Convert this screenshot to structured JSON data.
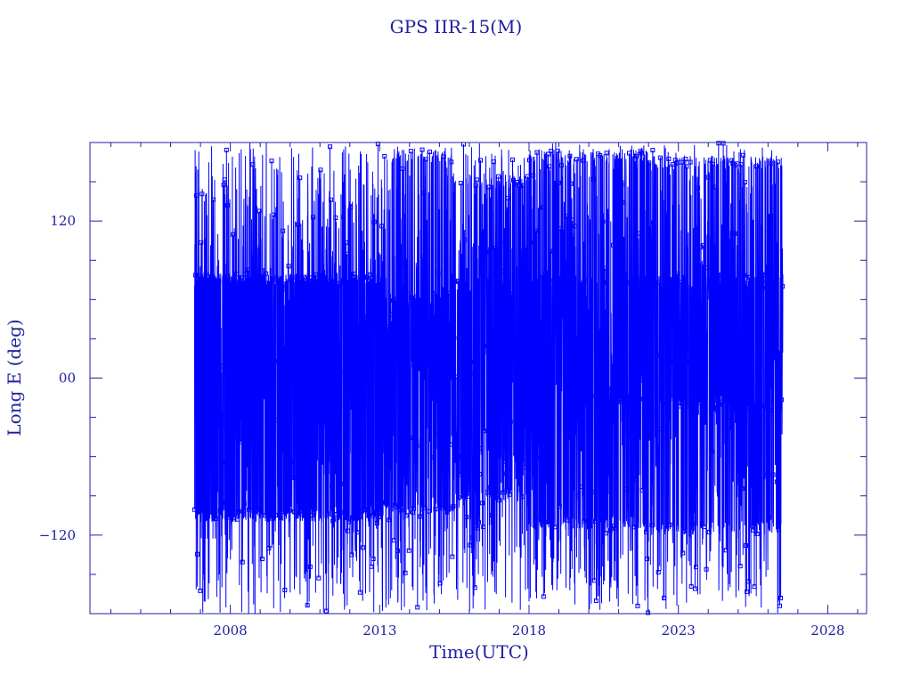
{
  "colors": {
    "axis": "#2020a0",
    "series": "#0000ff",
    "background": "#ffffff"
  },
  "chart_data": {
    "type": "scatter",
    "title": "GPS IIR-15(M)",
    "xlabel": "Time(UTC)",
    "ylabel": "Long E (deg)",
    "xlim": [
      2003.3,
      2029.3
    ],
    "ylim": [
      -180,
      180
    ],
    "x_ticks": [
      2008,
      2013,
      2018,
      2023,
      2028
    ],
    "x_tick_labels": [
      "2008",
      "2013",
      "2018",
      "2023",
      "2028"
    ],
    "y_ticks": [
      120,
      0,
      -120
    ],
    "y_tick_labels": [
      "120",
      "00",
      "−120"
    ],
    "series": [
      {
        "color": "#0000ff",
        "connected": true,
        "start": 2006.8,
        "end": 2026.5,
        "tracks": [
          {
            "from": 2006.8,
            "to": 2013.2,
            "values": [
              75,
              -105
            ]
          },
          {
            "from": 2013.2,
            "to": 2015.5,
            "values": [
              60,
              -100,
              170,
              10
            ]
          },
          {
            "from": 2015.5,
            "to": 2018.0,
            "values": [
              150,
              70,
              -90,
              100,
              -60
            ]
          },
          {
            "from": 2018.0,
            "to": 2022.0,
            "values": [
              170,
              75,
              -15,
              -110
            ]
          },
          {
            "from": 2022.0,
            "to": 2026.5,
            "values": [
              165,
              75,
              -20,
              -115
            ]
          }
        ]
      }
    ]
  }
}
